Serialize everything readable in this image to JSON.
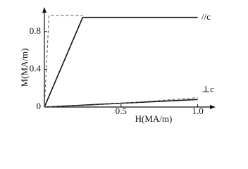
{
  "chart_data": {
    "type": "line",
    "x_label": "H(MA/m)",
    "y_label": "M(MA/m)",
    "xlim": [
      0,
      1.08
    ],
    "ylim": [
      0,
      1.0
    ],
    "xticks": [
      0.5,
      {
        "value": 1,
        "label": "1.0"
      }
    ],
    "yticks": [
      0,
      0.4,
      0.8
    ],
    "annotations": [
      "//c",
      "⊥c"
    ],
    "series": [
      {
        "color": "#111111",
        "style": "solid",
        "x": [
          0,
          0.25,
          1.0
        ],
        "values": [
          0,
          0.95,
          0.95
        ]
      },
      {
        "color": "#555555",
        "style": "dashed",
        "x": [
          0,
          0.03,
          0.25
        ],
        "values": [
          0,
          0.97,
          0.97
        ]
      },
      {
        "color": "#111111",
        "style": "solid",
        "x": [
          0,
          1.0
        ],
        "values": [
          0,
          0.08
        ]
      },
      {
        "color": "#555555",
        "style": "dashed",
        "x": [
          0,
          0.3,
          0.6,
          1.0
        ],
        "values": [
          0,
          0.02,
          0.05,
          0.1
        ]
      }
    ]
  }
}
